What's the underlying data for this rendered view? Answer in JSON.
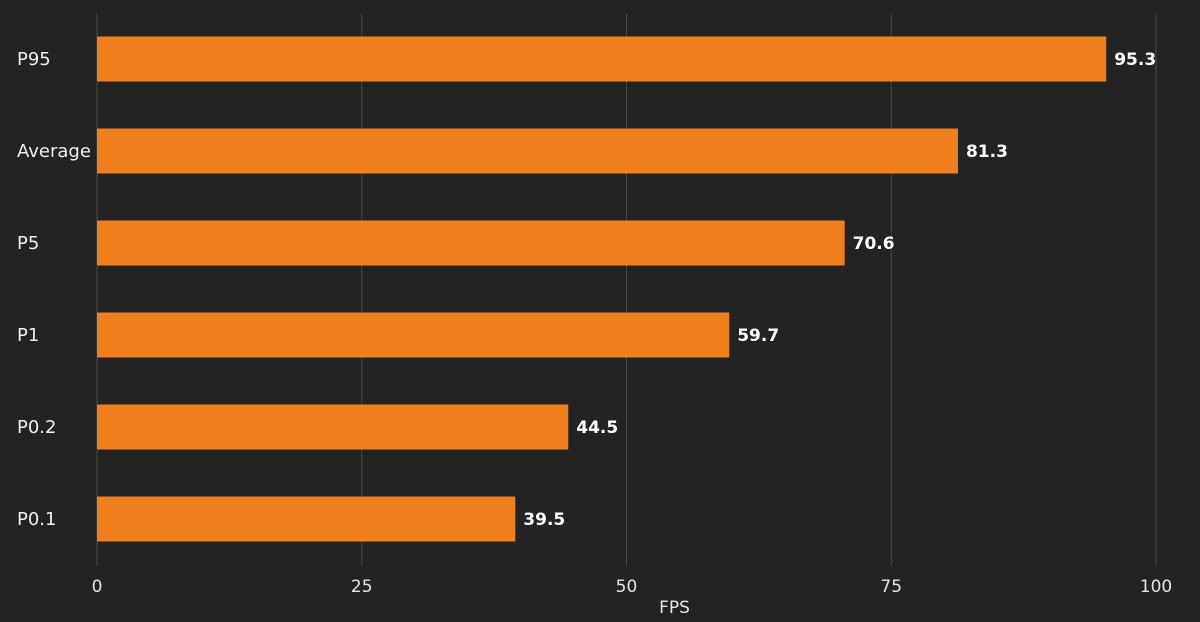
{
  "chart_data": {
    "type": "bar",
    "orientation": "horizontal",
    "categories": [
      "P95",
      "Average",
      "P5",
      "P1",
      "P0.2",
      "P0.1"
    ],
    "values": [
      95.3,
      81.3,
      70.6,
      59.7,
      44.5,
      39.5
    ],
    "value_labels": [
      "95.3",
      "81.3",
      "70.6",
      "59.7",
      "44.5",
      "39.5"
    ],
    "title": "",
    "xlabel": "FPS",
    "ylabel": "",
    "xlim": [
      0,
      100
    ],
    "xticks": [
      0,
      25,
      50,
      75,
      100
    ],
    "xtick_labels": [
      "0",
      "25",
      "50",
      "75",
      "100"
    ],
    "grid": true,
    "bar_color": "#f07f1e",
    "background_color": "#232323"
  }
}
